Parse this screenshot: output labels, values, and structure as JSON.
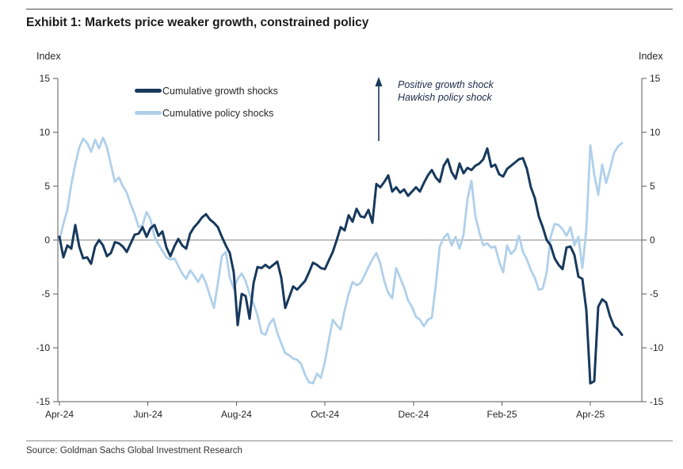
{
  "header": {
    "title": "Exhibit 1: Markets price weaker growth, constrained policy"
  },
  "footer": {
    "source": "Source: Goldman Sachs Global Investment Research"
  },
  "chart_data": {
    "type": "line",
    "title": "Exhibit 1: Markets price weaker growth, constrained policy",
    "y_axis": {
      "label_left": "Index",
      "label_right": "Index",
      "min": -15,
      "max": 15,
      "ticks": [
        15,
        10,
        5,
        0,
        -5,
        -10,
        -15
      ]
    },
    "x_axis": {
      "unit": "months since Apr-2024",
      "tick_months": [
        0,
        2,
        4,
        6,
        8,
        10,
        12
      ],
      "tick_labels": [
        "Apr-24",
        "Jun-24",
        "Aug-24",
        "Oct-24",
        "Dec-24",
        "Feb-25",
        "Apr-25"
      ]
    },
    "zero_line": true,
    "grid": false,
    "legend_position": "top-left-inside",
    "annotation": {
      "line1": "Positive growth shock",
      "line2": "Hawkish policy shock",
      "arrow": "up",
      "arrow_color": "#17395c"
    },
    "legend": [
      {
        "label": "Cumulative growth shocks",
        "color": "#17395c"
      },
      {
        "label": "Cumulative policy shocks",
        "color": "#b0d0ea"
      }
    ],
    "series": [
      {
        "name": "Cumulative growth shocks",
        "color": "#17395c",
        "t0_months": 0,
        "dt_months": 0.08953,
        "values": [
          0.3,
          -1.6,
          -0.5,
          -0.8,
          1.4,
          -0.6,
          -1.7,
          -1.6,
          -2.2,
          -0.6,
          0.0,
          -0.5,
          -1.5,
          -1.2,
          -0.2,
          -0.3,
          -0.6,
          -1.1,
          -0.3,
          0.5,
          0.6,
          1.2,
          0.3,
          1.1,
          1.4,
          0.4,
          0.8,
          -0.7,
          -1.5,
          -0.6,
          0.1,
          -0.5,
          -0.8,
          0.6,
          1.2,
          1.6,
          2.1,
          2.4,
          1.9,
          1.6,
          1.2,
          0.3,
          -0.5,
          -1.2,
          -3.0,
          -7.9,
          -5.0,
          -5.2,
          -7.3,
          -4.0,
          -2.5,
          -2.6,
          -2.3,
          -2.6,
          -2.3,
          -2.0,
          -3.5,
          -6.3,
          -5.3,
          -4.3,
          -4.6,
          -4.2,
          -3.8,
          -3.0,
          -2.1,
          -2.3,
          -2.6,
          -2.7,
          -1.9,
          -1.1,
          0.0,
          1.2,
          0.9,
          2.3,
          1.7,
          2.9,
          2.2,
          2.1,
          2.8,
          1.6,
          5.2,
          4.9,
          5.4,
          6.0,
          4.5,
          4.9,
          4.4,
          4.7,
          4.1,
          4.5,
          4.9,
          4.5,
          5.3,
          6.0,
          6.5,
          5.8,
          5.4,
          6.9,
          7.5,
          6.3,
          5.7,
          7.1,
          6.2,
          6.7,
          6.5,
          6.9,
          7.1,
          7.5,
          8.5,
          6.8,
          7.0,
          6.1,
          5.9,
          6.6,
          6.9,
          7.2,
          7.5,
          7.6,
          6.6,
          4.9,
          3.9,
          2.2,
          1.2,
          0.0,
          -0.5,
          -1.7,
          -2.3,
          -2.7,
          -0.7,
          -0.6,
          -1.4,
          -3.4,
          -3.6,
          -6.5,
          -13.3,
          -13.1,
          -6.2,
          -5.5,
          -5.8,
          -7.1,
          -8.0,
          -8.3,
          -8.8
        ]
      },
      {
        "name": "Cumulative policy shocks",
        "color": "#b0d0ea",
        "t0_months": 0,
        "dt_months": 0.08953,
        "values": [
          0.0,
          1.5,
          2.8,
          5.2,
          7.0,
          8.6,
          9.4,
          9.0,
          8.2,
          9.3,
          8.5,
          9.5,
          8.6,
          7.0,
          5.4,
          5.8,
          5.0,
          4.4,
          3.3,
          2.4,
          1.2,
          1.4,
          2.6,
          1.9,
          0.3,
          -0.4,
          -1.0,
          -1.6,
          -1.8,
          -1.7,
          -2.4,
          -3.1,
          -3.6,
          -2.8,
          -3.3,
          -3.9,
          -3.2,
          -4.0,
          -5.2,
          -6.3,
          -4.0,
          -1.5,
          -1.1,
          -3.5,
          -4.5,
          -3.6,
          -3.1,
          -3.8,
          -5.0,
          -5.9,
          -7.0,
          -8.6,
          -8.8,
          -7.8,
          -7.3,
          -8.6,
          -9.6,
          -10.5,
          -10.7,
          -11.0,
          -11.1,
          -11.5,
          -12.5,
          -13.2,
          -13.3,
          -12.4,
          -12.8,
          -11.3,
          -9.3,
          -7.4,
          -7.9,
          -8.3,
          -6.5,
          -5.0,
          -3.9,
          -4.2,
          -4.0,
          -3.3,
          -2.5,
          -1.8,
          -1.2,
          -2.2,
          -3.8,
          -4.9,
          -5.4,
          -2.6,
          -3.5,
          -4.4,
          -5.6,
          -6.2,
          -7.1,
          -7.4,
          -8.0,
          -7.4,
          -7.2,
          -4.2,
          -0.6,
          0.2,
          0.6,
          -0.5,
          0.3,
          -0.8,
          0.5,
          3.8,
          5.5,
          2.2,
          0.7,
          -0.5,
          -0.3,
          -0.7,
          -0.6,
          -2.0,
          -3.0,
          -0.5,
          -1.3,
          -0.9,
          0.4,
          -1.1,
          -1.8,
          -2.8,
          -3.5,
          -4.6,
          -4.5,
          -3.0,
          0.3,
          1.5,
          1.4,
          1.0,
          0.4,
          1.2,
          -0.5,
          0.3,
          -2.6,
          1.0,
          8.8,
          6.1,
          4.2,
          7.0,
          5.3,
          6.6,
          8.1,
          8.7,
          9.0
        ]
      }
    ]
  }
}
